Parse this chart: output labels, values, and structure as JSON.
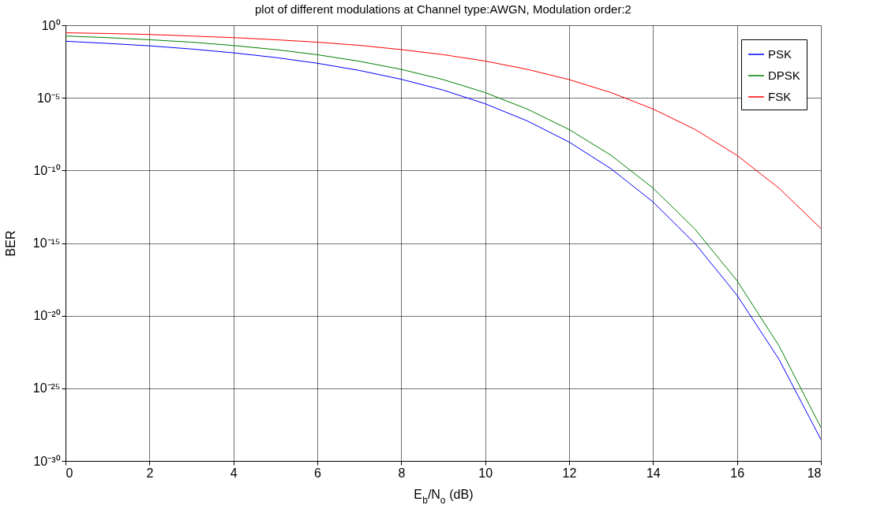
{
  "chart_data": {
    "type": "line",
    "title": "plot of different modulations at Channel type:AWGN, Modulation order:2",
    "xlabel": "E$_{b}$/N$_{o}$ (dB)",
    "ylabel": "BER",
    "x": [
      0,
      1,
      2,
      3,
      4,
      5,
      6,
      7,
      8,
      9,
      10,
      11,
      12,
      13,
      14,
      15,
      16,
      17,
      18
    ],
    "series": [
      {
        "name": "PSK",
        "color": "#0000ff",
        "values": [
          0.079,
          0.056,
          0.038,
          0.023,
          0.0125,
          0.006,
          0.0024,
          0.00077,
          0.00019,
          3.4e-05,
          3.9e-06,
          2.6e-07,
          9e-09,
          1.3e-10,
          6.8e-13,
          9.3e-16,
          2.6e-19,
          1e-23,
          3e-29
        ]
      },
      {
        "name": "DPSK",
        "color": "#008000",
        "values": [
          0.18,
          0.14,
          0.1,
          0.068,
          0.04,
          0.021,
          0.0093,
          0.0033,
          0.00091,
          0.00018,
          2.3e-05,
          1.7e-06,
          6.6e-08,
          1.1e-09,
          6.1e-12,
          9e-15,
          2.6e-18,
          8.6e-23,
          2e-28
        ]
      },
      {
        "name": "FSK",
        "color": "#ff0000",
        "values": [
          0.3,
          0.27,
          0.23,
          0.18,
          0.14,
          0.1,
          0.068,
          0.041,
          0.021,
          0.0094,
          0.0034,
          0.00092,
          0.00018,
          2.3e-05,
          1.7e-06,
          6.7e-08,
          1.1e-09,
          6.1e-12,
          1e-14
        ]
      }
    ],
    "xlim": [
      0,
      18
    ],
    "xticks": [
      0,
      2,
      4,
      6,
      8,
      10,
      12,
      14,
      16,
      18
    ],
    "ylim": [
      1e-30,
      1
    ],
    "log": true,
    "yticks": [
      {
        "value": 1e-30,
        "label": "10⁻³⁰"
      },
      {
        "value": 1e-25,
        "label": "10⁻²⁵"
      },
      {
        "value": 1e-20,
        "label": "10⁻²⁰"
      },
      {
        "value": 1e-15,
        "label": "10⁻¹⁵"
      },
      {
        "value": 1e-10,
        "label": "10⁻¹⁰"
      },
      {
        "value": 1e-05,
        "label": "10⁻⁵"
      },
      {
        "value": 1,
        "label": "10⁰"
      }
    ],
    "grid": true,
    "legend": "top right",
    "marker": "none",
    "line_style": "solid"
  }
}
